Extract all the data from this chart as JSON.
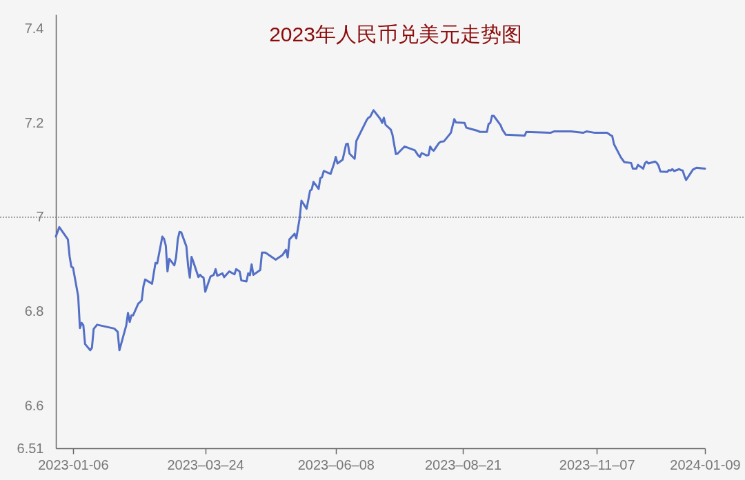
{
  "chart_data": {
    "type": "line",
    "title": "2023年人民币兑美元走势图",
    "x": [
      "2022-12-27",
      "2022-12-29",
      "2023-01-03",
      "2023-01-04",
      "2023-01-05",
      "2023-01-06",
      "2023-01-09",
      "2023-01-10",
      "2023-01-11",
      "2023-01-12",
      "2023-01-13",
      "2023-01-16",
      "2023-01-17",
      "2023-01-18",
      "2023-01-20",
      "2023-01-30",
      "2023-02-01",
      "2023-02-02",
      "2023-02-06",
      "2023-02-07",
      "2023-02-08",
      "2023-02-09",
      "2023-02-10",
      "2023-02-13",
      "2023-02-14",
      "2023-02-15",
      "2023-02-16",
      "2023-02-17",
      "2023-02-21",
      "2023-02-23",
      "2023-02-24",
      "2023-02-27",
      "2023-02-28",
      "2023-03-01",
      "2023-03-02",
      "2023-03-03",
      "2023-03-06",
      "2023-03-07",
      "2023-03-08",
      "2023-03-09",
      "2023-03-10",
      "2023-03-13",
      "2023-03-14",
      "2023-03-15",
      "2023-03-16",
      "2023-03-17",
      "2023-03-20",
      "2023-03-21",
      "2023-03-22",
      "2023-03-23",
      "2023-03-24",
      "2023-03-27",
      "2023-03-29",
      "2023-03-30",
      "2023-03-31",
      "2023-04-03",
      "2023-04-04",
      "2023-04-07",
      "2023-04-10",
      "2023-04-11",
      "2023-04-13",
      "2023-04-14",
      "2023-04-17",
      "2023-04-18",
      "2023-04-19",
      "2023-04-20",
      "2023-04-21",
      "2023-04-25",
      "2023-04-26",
      "2023-04-28",
      "2023-05-04",
      "2023-05-08",
      "2023-05-10",
      "2023-05-11",
      "2023-05-12",
      "2023-05-15",
      "2023-05-16",
      "2023-05-18",
      "2023-05-19",
      "2023-05-22",
      "2023-05-24",
      "2023-05-25",
      "2023-05-26",
      "2023-05-29",
      "2023-05-30",
      "2023-05-31",
      "2023-06-01",
      "2023-06-05",
      "2023-06-07",
      "2023-06-08",
      "2023-06-09",
      "2023-06-12",
      "2023-06-14",
      "2023-06-15",
      "2023-06-16",
      "2023-06-19",
      "2023-06-20",
      "2023-06-26",
      "2023-06-27",
      "2023-06-28",
      "2023-06-30",
      "2023-07-04",
      "2023-07-05",
      "2023-07-06",
      "2023-07-07",
      "2023-07-10",
      "2023-07-11",
      "2023-07-13",
      "2023-07-14",
      "2023-07-18",
      "2023-07-21",
      "2023-07-24",
      "2023-07-26",
      "2023-07-27",
      "2023-07-28",
      "2023-07-31",
      "2023-08-01",
      "2023-08-02",
      "2023-08-03",
      "2023-08-04",
      "2023-08-07",
      "2023-08-08",
      "2023-08-10",
      "2023-08-14",
      "2023-08-16",
      "2023-08-17",
      "2023-08-22",
      "2023-08-23",
      "2023-08-25",
      "2023-08-29",
      "2023-08-31",
      "2023-09-04",
      "2023-09-05",
      "2023-09-06",
      "2023-09-07",
      "2023-09-08",
      "2023-09-12",
      "2023-09-13",
      "2023-09-15",
      "2023-09-21",
      "2023-09-26",
      "2023-09-27",
      "2023-10-11",
      "2023-10-13",
      "2023-10-23",
      "2023-10-30",
      "2023-11-01",
      "2023-11-06",
      "2023-11-13",
      "2023-11-15",
      "2023-11-16",
      "2023-11-17",
      "2023-11-21",
      "2023-11-23",
      "2023-11-27",
      "2023-11-28",
      "2023-11-30",
      "2023-12-01",
      "2023-12-04",
      "2023-12-05",
      "2023-12-06",
      "2023-12-07",
      "2023-12-11",
      "2023-12-12",
      "2023-12-13",
      "2023-12-14",
      "2023-12-18",
      "2023-12-19",
      "2023-12-20",
      "2023-12-21",
      "2023-12-22",
      "2023-12-25",
      "2023-12-26",
      "2023-12-27",
      "2023-12-28",
      "2023-12-29",
      "2024-01-02",
      "2024-01-03",
      "2024-01-04",
      "2024-01-09"
    ],
    "series": [
      {
        "color": "#5470c6",
        "values": [
          6.959,
          6.979,
          6.953,
          6.917,
          6.895,
          6.893,
          6.832,
          6.765,
          6.776,
          6.771,
          6.731,
          6.718,
          6.723,
          6.763,
          6.772,
          6.764,
          6.757,
          6.718,
          6.771,
          6.797,
          6.778,
          6.792,
          6.792,
          6.817,
          6.82,
          6.824,
          6.854,
          6.868,
          6.859,
          6.903,
          6.902,
          6.959,
          6.954,
          6.94,
          6.885,
          6.912,
          6.898,
          6.915,
          6.953,
          6.969,
          6.968,
          6.938,
          6.897,
          6.872,
          6.916,
          6.906,
          6.873,
          6.878,
          6.874,
          6.872,
          6.842,
          6.874,
          6.878,
          6.89,
          6.876,
          6.881,
          6.873,
          6.885,
          6.879,
          6.89,
          6.885,
          6.866,
          6.864,
          6.881,
          6.877,
          6.9,
          6.878,
          6.888,
          6.925,
          6.925,
          6.91,
          6.92,
          6.931,
          6.915,
          6.953,
          6.965,
          6.955,
          6.999,
          7.035,
          7.018,
          7.056,
          7.059,
          7.075,
          7.06,
          7.083,
          7.085,
          7.098,
          7.092,
          7.114,
          7.128,
          7.114,
          7.122,
          7.155,
          7.156,
          7.135,
          7.124,
          7.162,
          7.206,
          7.211,
          7.213,
          7.227,
          7.208,
          7.2,
          7.211,
          7.196,
          7.186,
          7.175,
          7.134,
          7.135,
          7.15,
          7.146,
          7.142,
          7.131,
          7.128,
          7.136,
          7.131,
          7.132,
          7.15,
          7.144,
          7.141,
          7.157,
          7.16,
          7.161,
          7.179,
          7.208,
          7.201,
          7.2,
          7.19,
          7.188,
          7.184,
          7.181,
          7.181,
          7.198,
          7.2,
          7.215,
          7.215,
          7.195,
          7.186,
          7.175,
          7.174,
          7.173,
          7.181,
          7.179,
          7.182,
          7.182,
          7.179,
          7.182,
          7.179,
          7.179,
          7.174,
          7.172,
          7.155,
          7.127,
          7.117,
          7.115,
          7.103,
          7.103,
          7.111,
          7.103,
          7.114,
          7.118,
          7.114,
          7.118,
          7.115,
          7.109,
          7.097,
          7.096,
          7.1,
          7.099,
          7.102,
          7.098,
          7.102,
          7.1,
          7.099,
          7.088,
          7.079,
          7.101,
          7.103,
          7.105,
          7.103
        ]
      }
    ],
    "xlim": [
      "2022-12-27",
      "2024-01-09"
    ],
    "xticks": [
      {
        "value": "2023-01-06",
        "label": "2023-01-06"
      },
      {
        "value": "2023-03-24",
        "label": "2023–03–24"
      },
      {
        "value": "2023-06-08",
        "label": "2023–06–08"
      },
      {
        "value": "2023-08-21",
        "label": "2023–08–21"
      },
      {
        "value": "2023-11-07",
        "label": "2023–11–07"
      },
      {
        "value": "2024-01-09",
        "label": "2024-01-09"
      }
    ],
    "ylim": [
      6.51,
      7.43
    ],
    "yticks": [
      6.51,
      6.6,
      6.8,
      7,
      7.2,
      7.4
    ],
    "ref_lines": [
      {
        "axis": "y",
        "value": 7,
        "color": "#555555",
        "line_style": "dotted"
      }
    ]
  }
}
